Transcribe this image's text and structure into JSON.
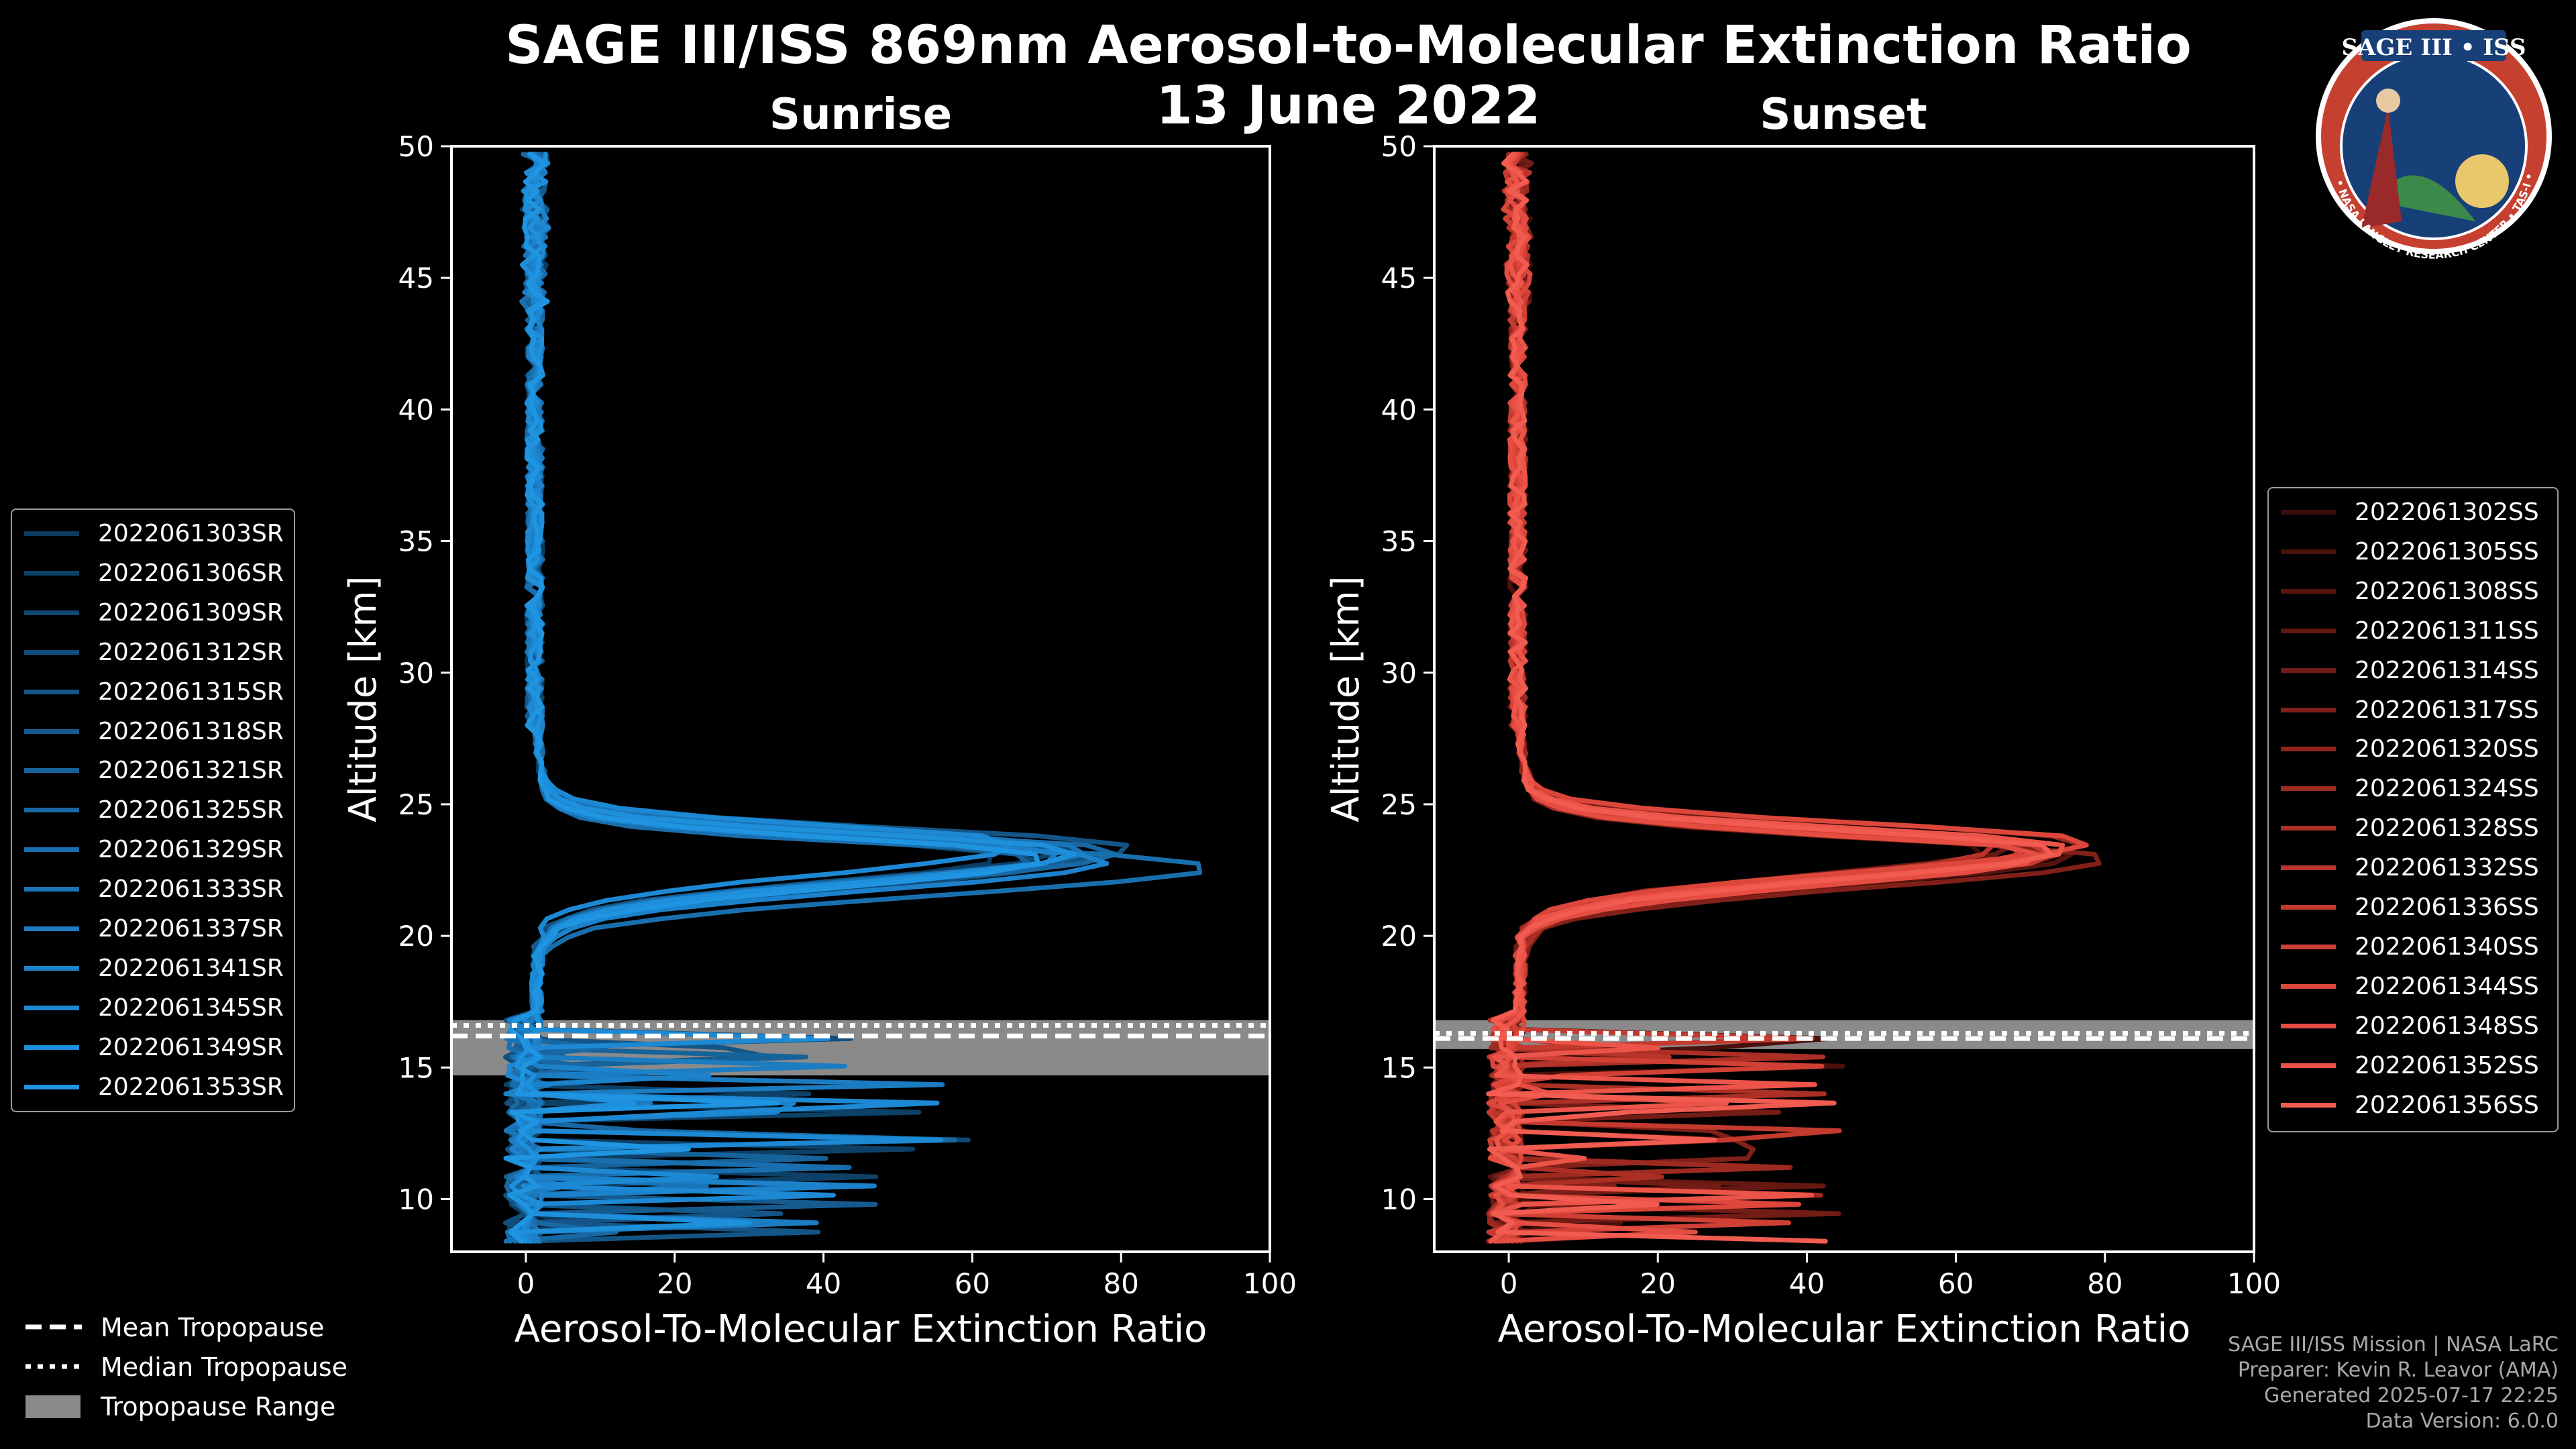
{
  "title": "SAGE III/ISS 869nm Aerosol-to-Molecular Extinction Ratio",
  "date": "13 June 2022",
  "logo": {
    "text": "SAGE III • ISS",
    "ring": "BALL • NASA LANGLEY RESEARCH CENTER • TAS-I • ESA"
  },
  "credits": [
    "SAGE III/ISS Mission | NASA LaRC",
    "Preparer: Kevin R. Leavor (AMA)",
    "Generated 2025-07-17 22:25",
    "Data Version: 6.0.0"
  ],
  "tropopause_legend": {
    "mean": "Mean Tropopause",
    "median": "Median Tropopause",
    "range": "Tropopause Range"
  },
  "chart_data": [
    {
      "type": "line",
      "title": "Sunrise",
      "xlabel": "Aerosol-To-Molecular Extinction Ratio",
      "ylabel": "Altitude [km]",
      "xlim": [
        -10,
        100
      ],
      "ylim": [
        8,
        50
      ],
      "xticks": [
        0,
        20,
        40,
        60,
        80,
        100
      ],
      "yticks": [
        10,
        15,
        20,
        25,
        30,
        35,
        40,
        45,
        50
      ],
      "legend_position": "left",
      "tropopause": {
        "mean": 16.2,
        "median": 16.6,
        "range": [
          14.7,
          16.8
        ]
      },
      "series": [
        {
          "name": "2022061303SR",
          "color": "#0b3b5e",
          "peak": 62,
          "peak_alt": 23.0
        },
        {
          "name": "2022061306SR",
          "color": "#0d4168",
          "peak": 70,
          "peak_alt": 23.2
        },
        {
          "name": "2022061309SR",
          "color": "#0f4872",
          "peak": 75,
          "peak_alt": 23.0
        },
        {
          "name": "2022061312SR",
          "color": "#114e7c",
          "peak": 68,
          "peak_alt": 22.8
        },
        {
          "name": "2022061315SR",
          "color": "#135586",
          "peak": 80,
          "peak_alt": 23.3
        },
        {
          "name": "2022061318SR",
          "color": "#155b90",
          "peak": 72,
          "peak_alt": 23.0
        },
        {
          "name": "2022061321SR",
          "color": "#16629a",
          "peak": 66,
          "peak_alt": 22.9
        },
        {
          "name": "2022061325SR",
          "color": "#1868a4",
          "peak": 78,
          "peak_alt": 23.1
        },
        {
          "name": "2022061329SR",
          "color": "#196fae",
          "peak": 90,
          "peak_alt": 22.6
        },
        {
          "name": "2022061333SR",
          "color": "#1a75b8",
          "peak": 74,
          "peak_alt": 23.2
        },
        {
          "name": "2022061337SR",
          "color": "#1b7cc2",
          "peak": 70,
          "peak_alt": 23.0
        },
        {
          "name": "2022061341SR",
          "color": "#1c82cb",
          "peak": 76,
          "peak_alt": 22.8
        },
        {
          "name": "2022061345SR",
          "color": "#1d89d4",
          "peak": 64,
          "peak_alt": 23.4
        },
        {
          "name": "2022061349SR",
          "color": "#1e8fdb",
          "peak": 72,
          "peak_alt": 23.1
        },
        {
          "name": "2022061353SR",
          "color": "#1f95e2",
          "peak": 68,
          "peak_alt": 22.9
        }
      ]
    },
    {
      "type": "line",
      "title": "Sunset",
      "xlabel": "Aerosol-To-Molecular Extinction Ratio",
      "ylabel": "Altitude [km]",
      "xlim": [
        -10,
        100
      ],
      "ylim": [
        8,
        50
      ],
      "xticks": [
        0,
        20,
        40,
        60,
        80,
        100
      ],
      "yticks": [
        10,
        15,
        20,
        25,
        30,
        35,
        40,
        45,
        50
      ],
      "legend_position": "right",
      "tropopause": {
        "mean": 16.1,
        "median": 16.3,
        "range": [
          15.7,
          16.8
        ]
      },
      "series": [
        {
          "name": "2022061302SS",
          "color": "#3d0d0a",
          "peak": 62,
          "peak_alt": 23.2
        },
        {
          "name": "2022061305SS",
          "color": "#4a100c",
          "peak": 70,
          "peak_alt": 23.3
        },
        {
          "name": "2022061308SS",
          "color": "#57140f",
          "peak": 74,
          "peak_alt": 23.0
        },
        {
          "name": "2022061311SS",
          "color": "#651812",
          "peak": 66,
          "peak_alt": 23.4
        },
        {
          "name": "2022061314SS",
          "color": "#731c15",
          "peak": 72,
          "peak_alt": 23.1
        },
        {
          "name": "2022061317SS",
          "color": "#812018",
          "peak": 78,
          "peak_alt": 22.9
        },
        {
          "name": "2022061320SS",
          "color": "#8f251c",
          "peak": 68,
          "peak_alt": 23.2
        },
        {
          "name": "2022061324SS",
          "color": "#9d2a20",
          "peak": 75,
          "peak_alt": 23.5
        },
        {
          "name": "2022061328SS",
          "color": "#ab2f25",
          "peak": 70,
          "peak_alt": 23.0
        },
        {
          "name": "2022061332SS",
          "color": "#b8342a",
          "peak": 64,
          "peak_alt": 23.3
        },
        {
          "name": "2022061336SS",
          "color": "#c53a2f",
          "peak": 72,
          "peak_alt": 23.1
        },
        {
          "name": "2022061340SS",
          "color": "#d14035",
          "peak": 68,
          "peak_alt": 23.2
        },
        {
          "name": "2022061344SS",
          "color": "#dc463b",
          "peak": 76,
          "peak_alt": 23.5
        },
        {
          "name": "2022061348SS",
          "color": "#e54d42",
          "peak": 70,
          "peak_alt": 23.0
        },
        {
          "name": "2022061352SS",
          "color": "#ec5449",
          "peak": 74,
          "peak_alt": 23.3
        },
        {
          "name": "2022061356SS",
          "color": "#f25c50",
          "peak": 72,
          "peak_alt": 23.2
        }
      ]
    }
  ]
}
